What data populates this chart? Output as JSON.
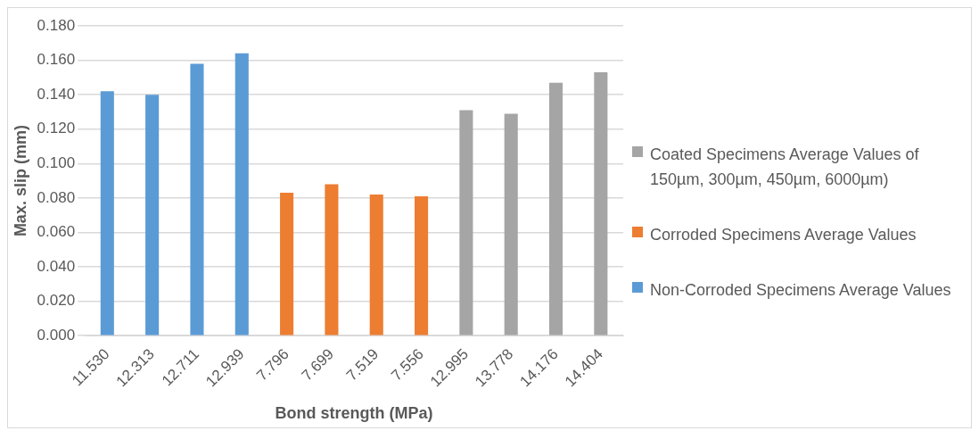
{
  "chart_data": {
    "type": "bar",
    "xlabel": "Bond strength (MPa)",
    "ylabel": "Max. slip (mm)",
    "categories": [
      "11.530",
      "12.313",
      "12.711",
      "12.939",
      "7.796",
      "7.699",
      "7.519",
      "7.556",
      "12.995",
      "13.778",
      "14.176",
      "14.404"
    ],
    "series": [
      {
        "name": "Non-Corroded Specimens Average Values",
        "color": "#5b9bd5",
        "values": [
          0.142,
          0.14,
          0.158,
          0.164,
          null,
          null,
          null,
          null,
          null,
          null,
          null,
          null
        ]
      },
      {
        "name": "Corroded Specimens Average Values",
        "color": "#ed7d31",
        "values": [
          null,
          null,
          null,
          null,
          0.083,
          0.088,
          0.082,
          0.081,
          null,
          null,
          null,
          null
        ]
      },
      {
        "name": "Coated Specimens Average Values of 150µm, 300µm, 450µm, 6000µm)",
        "color": "#a5a5a5",
        "values": [
          null,
          null,
          null,
          null,
          null,
          null,
          null,
          null,
          0.131,
          0.129,
          0.147,
          0.153
        ]
      }
    ],
    "ylim": [
      0,
      0.18
    ],
    "yticks": [
      {
        "value": 0,
        "label": "0.000"
      },
      {
        "value": 0.02,
        "label": "0.020"
      },
      {
        "value": 0.04,
        "label": "0.040"
      },
      {
        "value": 0.06,
        "label": "0.060"
      },
      {
        "value": 0.08,
        "label": "0.080"
      },
      {
        "value": 0.1,
        "label": "0.100"
      },
      {
        "value": 0.12,
        "label": "0.120"
      },
      {
        "value": 0.14,
        "label": "0.140"
      },
      {
        "value": 0.16,
        "label": "0.160"
      },
      {
        "value": 0.18,
        "label": "0.180"
      }
    ],
    "grid": "y",
    "legend": "right"
  }
}
